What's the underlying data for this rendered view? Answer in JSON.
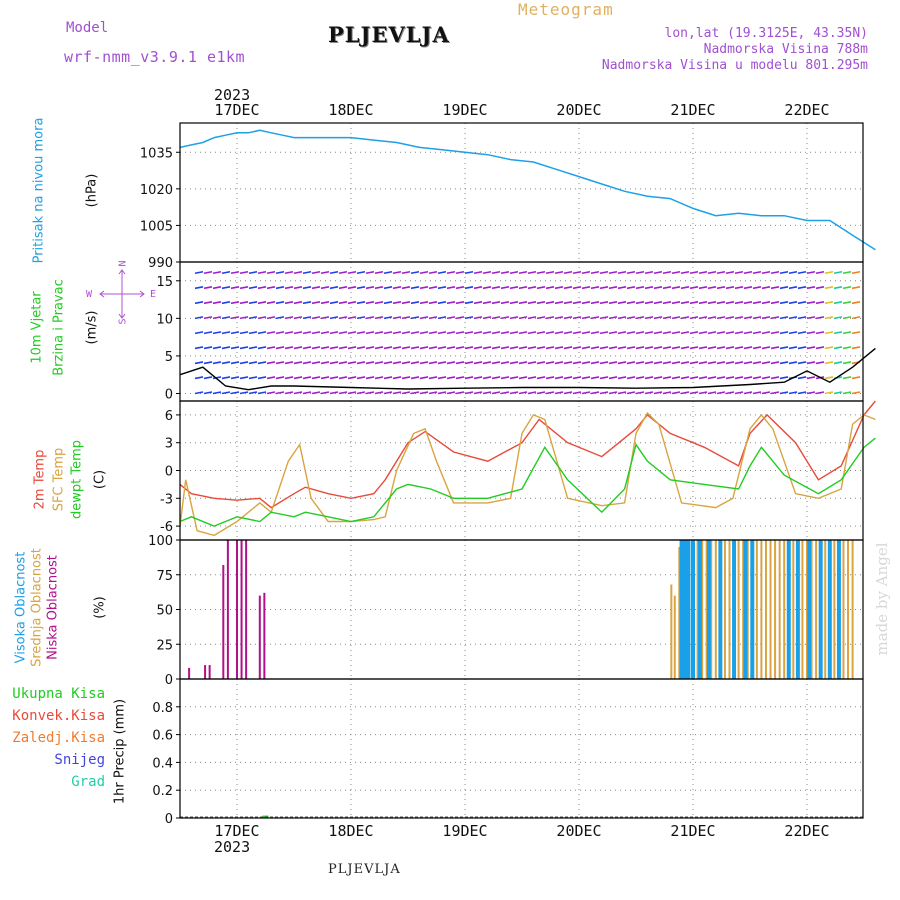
{
  "header": {
    "model_label": "Model",
    "model_name": "wrf-nmm_v3.9.1 e1km",
    "title": "PLJEVLJA",
    "meteogram_label": "Meteogram",
    "lonlat": "lon,lat (19.3125E, 43.35N)",
    "altitude": "Nadmorska Visina 788m",
    "model_altitude": "Nadmorska Visina u modelu 801.295m"
  },
  "axis_dates": {
    "year": "2023",
    "days": [
      "17DEC",
      "18DEC",
      "19DEC",
      "20DEC",
      "21DEC",
      "22DEC"
    ]
  },
  "footer": {
    "station": "PLJEVLJA",
    "credit": "made by Angel"
  },
  "colors": {
    "pressure": "#1ea0e6",
    "temp2m": "#e84a3c",
    "sfc_temp": "#d9a441",
    "dewpt": "#22cc22",
    "high_cloud": "#1aa0e8",
    "mid_cloud": "#d9a441",
    "low_cloud": "#b0108a",
    "grid": "#888888"
  },
  "panels": {
    "pressure": {
      "label": "Pritisak na nivou mora",
      "unit": "(hPa)"
    },
    "wind": {
      "label1": "10m Vjetar",
      "label2": "Brzina i Pravac",
      "unit": "(m/s)",
      "compass": {
        "n": "N",
        "s": "S",
        "e": "E",
        "w": "W"
      }
    },
    "temp": {
      "label1": "2m Temp",
      "label2": "SFC Temp",
      "label3": "dewpt Temp",
      "unit": "(C)"
    },
    "cloud": {
      "label1": "Visoka Oblacnost",
      "label2": "Srednja Oblacnost",
      "label3": "Niska Oblacnost",
      "unit": "(%)"
    },
    "precip": {
      "unit": "1hr Precip (mm)",
      "legend": [
        "Ukupna Kisa",
        "Konvek.Kisa",
        "Zaledj.Kisa",
        "Snijeg",
        "Grad"
      ],
      "legend_colors": [
        "#22cc22",
        "#e84a3c",
        "#f07c30",
        "#4444dd",
        "#22ccaa"
      ]
    }
  },
  "chart_data": [
    {
      "type": "line",
      "title": "Pritisak na nivou mora",
      "ylabel": "(hPa)",
      "ylim": [
        990,
        1047
      ],
      "yticks": [
        990,
        1005,
        1020,
        1035
      ],
      "grid": true,
      "x_unit": "days since 17DEC 00UTC",
      "series": [
        {
          "name": "Pritisak na nivou mora",
          "x": [
            -0.5,
            -0.4,
            -0.3,
            -0.2,
            -0.1,
            0,
            0.1,
            0.2,
            0.3,
            0.4,
            0.5,
            0.6,
            0.7,
            0.8,
            0.9,
            1.0,
            1.2,
            1.4,
            1.6,
            1.8,
            2.0,
            2.2,
            2.4,
            2.6,
            2.8,
            3.0,
            3.2,
            3.4,
            3.6,
            3.8,
            4.0,
            4.2,
            4.4,
            4.6,
            4.8,
            5.0,
            5.2,
            5.4,
            5.6
          ],
          "values": [
            1037,
            1038,
            1039,
            1041,
            1042,
            1043,
            1043,
            1044,
            1043,
            1042,
            1041,
            1041,
            1041,
            1041,
            1041,
            1041,
            1040,
            1039,
            1037,
            1036,
            1035,
            1034,
            1032,
            1031,
            1028,
            1025,
            1022,
            1019,
            1017,
            1016,
            1012,
            1009,
            1010,
            1009,
            1009,
            1007,
            1007,
            1001,
            995
          ]
        }
      ]
    },
    {
      "type": "scatter",
      "title": "10m Vjetar Brzina i Pravac",
      "ylabel": "(m/s)",
      "ylim": [
        -1,
        17.5
      ],
      "yticks": [
        0,
        5,
        10,
        15
      ],
      "grid": true,
      "series": [
        {
          "name": "10m Vjetar",
          "x": [
            -0.5,
            -0.3,
            -0.1,
            0.1,
            0.3,
            0.5,
            1.0,
            1.5,
            2.0,
            2.5,
            3.0,
            3.5,
            4.0,
            4.5,
            4.8,
            5.0,
            5.2,
            5.4,
            5.6
          ],
          "values": [
            2.5,
            3.5,
            1.0,
            0.5,
            1.0,
            1.0,
            0.8,
            0.6,
            0.7,
            0.8,
            0.8,
            0.7,
            0.8,
            1.2,
            1.5,
            3.0,
            1.5,
            3.5,
            6.0
          ]
        }
      ]
    },
    {
      "type": "line",
      "title": "2m Temp / SFC Temp / dewpt Temp",
      "ylabel": "(C)",
      "ylim": [
        -7.5,
        7.5
      ],
      "yticks": [
        -6,
        -3,
        0,
        3,
        6
      ],
      "grid": true,
      "series": [
        {
          "name": "2m Temp",
          "x": [
            -0.5,
            -0.4,
            -0.2,
            0,
            0.2,
            0.3,
            0.5,
            0.6,
            0.8,
            1.0,
            1.2,
            1.3,
            1.5,
            1.65,
            1.9,
            2.2,
            2.5,
            2.65,
            2.9,
            3.2,
            3.5,
            3.6,
            3.8,
            4.1,
            4.4,
            4.5,
            4.65,
            4.9,
            5.1,
            5.3,
            5.5,
            5.6
          ],
          "values": [
            -1.5,
            -2.5,
            -3.0,
            -3.2,
            -3.0,
            -4.0,
            -2.5,
            -1.8,
            -2.5,
            -3.0,
            -2.5,
            -1.0,
            3.0,
            4.2,
            2.0,
            1.0,
            3.0,
            5.5,
            3.0,
            1.5,
            4.5,
            6.0,
            4.0,
            2.5,
            0.5,
            4.0,
            6.0,
            3.0,
            -1.0,
            0.5,
            6.0,
            7.5
          ]
        },
        {
          "name": "SFC Temp",
          "x": [
            -0.5,
            -0.45,
            -0.35,
            -0.2,
            0,
            0.2,
            0.3,
            0.45,
            0.55,
            0.65,
            0.8,
            1.0,
            1.2,
            1.3,
            1.4,
            1.55,
            1.65,
            1.75,
            1.9,
            2.2,
            2.4,
            2.5,
            2.6,
            2.7,
            2.9,
            3.2,
            3.4,
            3.5,
            3.6,
            3.7,
            3.9,
            4.2,
            4.35,
            4.5,
            4.6,
            4.7,
            4.9,
            5.1,
            5.3,
            5.4,
            5.5,
            5.6
          ],
          "values": [
            -6.0,
            -1.0,
            -6.5,
            -7.0,
            -5.5,
            -3.5,
            -4.5,
            1.0,
            2.8,
            -3.0,
            -5.5,
            -5.5,
            -5.3,
            -5.0,
            0,
            4.0,
            4.5,
            1.0,
            -3.5,
            -3.5,
            -3.0,
            4.0,
            6.0,
            5.5,
            -3.0,
            -3.8,
            -3.5,
            4.0,
            6.2,
            5.0,
            -3.5,
            -4.0,
            -3.0,
            4.5,
            6.0,
            4.5,
            -2.5,
            -3.0,
            -2.0,
            5.0,
            6.0,
            5.5
          ]
        },
        {
          "name": "dewpt Temp",
          "x": [
            -0.5,
            -0.4,
            -0.2,
            0,
            0.2,
            0.3,
            0.5,
            0.6,
            0.8,
            1.0,
            1.2,
            1.4,
            1.5,
            1.7,
            1.9,
            2.2,
            2.5,
            2.7,
            2.9,
            3.2,
            3.4,
            3.5,
            3.6,
            3.8,
            4.1,
            4.4,
            4.5,
            4.6,
            4.8,
            5.1,
            5.3,
            5.5,
            5.6
          ],
          "values": [
            -5.5,
            -5.0,
            -6.0,
            -5.0,
            -5.5,
            -4.5,
            -5.0,
            -4.5,
            -5.0,
            -5.5,
            -5.0,
            -2.0,
            -1.5,
            -2.0,
            -3.0,
            -3.0,
            -2.0,
            2.5,
            -1.0,
            -4.5,
            -2.0,
            2.8,
            1.0,
            -1.0,
            -1.5,
            -2.0,
            0.5,
            2.5,
            -0.5,
            -2.5,
            -1.0,
            2.5,
            3.5
          ]
        }
      ]
    },
    {
      "type": "bar",
      "title": "Visoka / Srednja / Niska Oblacnost",
      "ylabel": "(%)",
      "ylim": [
        0,
        100
      ],
      "yticks": [
        0,
        25,
        50,
        75,
        100
      ],
      "grid": true,
      "series": [
        {
          "name": "Niska Oblacnost",
          "x": [
            -0.42,
            -0.28,
            -0.24,
            -0.12,
            -0.08,
            0.0,
            0.04,
            0.08,
            0.2,
            0.24
          ],
          "values": [
            8,
            10,
            10,
            82,
            100,
            100,
            100,
            100,
            60,
            62
          ]
        },
        {
          "name": "Srednja Oblacnost",
          "x": [
            3.81,
            3.84,
            3.88,
            3.93,
            3.96,
            4.0,
            4.04,
            4.08,
            4.12,
            4.16,
            4.2,
            4.24,
            4.28,
            4.32,
            4.36,
            4.4,
            4.44,
            4.48,
            4.52,
            4.56,
            4.6,
            4.64,
            4.68,
            4.72,
            4.76,
            4.8,
            4.84,
            4.88,
            4.92,
            4.96,
            5.0,
            5.04,
            5.08,
            5.12,
            5.16,
            5.2,
            5.24,
            5.28,
            5.32,
            5.36,
            5.4
          ],
          "values": [
            68,
            60,
            95,
            100,
            100,
            100,
            100,
            100,
            100,
            100,
            100,
            100,
            100,
            100,
            100,
            100,
            100,
            100,
            100,
            100,
            100,
            100,
            100,
            100,
            100,
            100,
            100,
            100,
            100,
            100,
            100,
            100,
            100,
            100,
            100,
            100,
            100,
            100,
            100,
            100,
            100
          ]
        },
        {
          "name": "Visoka Oblacnost",
          "x": [
            3.9,
            3.93,
            3.96,
            4.0,
            4.06,
            4.14,
            4.24,
            4.36,
            4.46,
            4.52,
            4.84,
            4.92,
            5.02,
            5.12,
            5.2,
            5.28
          ],
          "values": [
            100,
            100,
            100,
            100,
            100,
            100,
            100,
            100,
            100,
            100,
            100,
            100,
            100,
            100,
            100,
            100
          ]
        }
      ]
    },
    {
      "type": "bar",
      "title": "1hr Precip",
      "ylabel": "1hr Precip (mm)",
      "ylim": [
        0,
        1
      ],
      "yticks": [
        0,
        0.2,
        0.4,
        0.6,
        0.8
      ],
      "grid": true,
      "series": [
        {
          "name": "Ukupna Kisa",
          "x": [
            0.25
          ],
          "values": [
            0.01
          ]
        }
      ]
    }
  ]
}
